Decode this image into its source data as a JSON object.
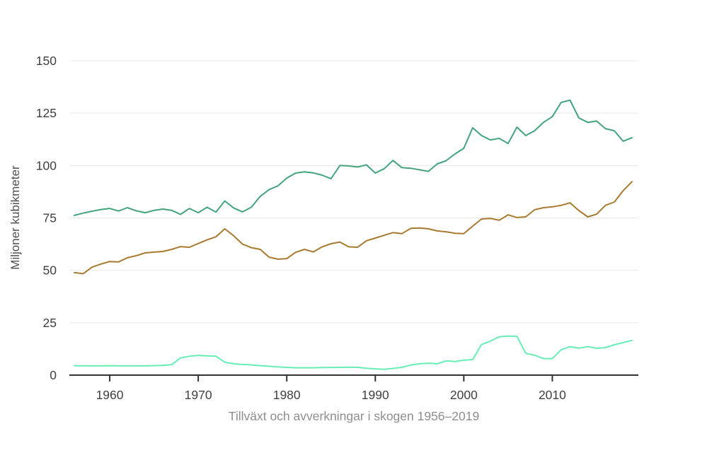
{
  "chart_data": {
    "type": "line",
    "title": "Tillväxt och avverkningar i skogen 1956–2019",
    "ylabel": "Miljoner kubikmeter",
    "xlabel": "",
    "x_range": [
      1956,
      2019
    ],
    "years": [
      1956,
      1957,
      1958,
      1959,
      1960,
      1961,
      1962,
      1963,
      1964,
      1965,
      1966,
      1967,
      1968,
      1969,
      1970,
      1971,
      1972,
      1973,
      1974,
      1975,
      1976,
      1977,
      1978,
      1979,
      1980,
      1981,
      1982,
      1983,
      1984,
      1985,
      1986,
      1987,
      1988,
      1989,
      1990,
      1991,
      1992,
      1993,
      1994,
      1995,
      1996,
      1997,
      1998,
      1999,
      2000,
      2001,
      2002,
      2003,
      2004,
      2005,
      2006,
      2007,
      2008,
      2009,
      2010,
      2011,
      2012,
      2013,
      2014,
      2015,
      2016,
      2017,
      2018,
      2019
    ],
    "x_ticks": [
      1960,
      1970,
      1980,
      1990,
      2000,
      2010
    ],
    "y_ticks": [
      0,
      25,
      50,
      75,
      100,
      125,
      150
    ],
    "ylim": [
      0,
      150
    ],
    "grid": "horizontal",
    "legend": "none",
    "series": [
      {
        "name": "teal-line",
        "color": "#43a47c",
        "values": [
          76.2,
          77.3,
          78.2,
          79,
          79.5,
          78.3,
          79.9,
          78.4,
          77.5,
          78.6,
          79.2,
          78.6,
          76.7,
          79.5,
          77.5,
          80.1,
          77.8,
          83.1,
          79.8,
          77.9,
          80.1,
          85.3,
          88.5,
          90.3,
          94,
          96.4,
          97,
          96.5,
          95.4,
          93.7,
          100,
          99.8,
          99.3,
          100.3,
          96.4,
          98.5,
          102.4,
          99,
          98.7,
          98,
          97.2,
          100.8,
          102.3,
          105.5,
          108.2,
          118,
          114.3,
          112.2,
          113,
          110.5,
          118.3,
          114.3,
          116.6,
          120.6,
          123.3,
          130.1,
          131.2,
          122.7,
          120.6,
          121.2,
          117.6,
          116.6,
          111.6,
          113.3
        ]
      },
      {
        "name": "brown-line",
        "color": "#a9792f",
        "values": [
          48.9,
          48.4,
          51.5,
          53,
          54.2,
          54,
          56,
          57,
          58.3,
          58.7,
          59,
          60,
          61.3,
          61,
          62.8,
          64.5,
          66,
          69.8,
          66.5,
          62.5,
          60.8,
          60,
          56.3,
          55.3,
          55.6,
          58.6,
          60,
          58.8,
          61.2,
          62.7,
          63.5,
          61.2,
          61,
          64.1,
          65.4,
          66.7,
          68,
          67.5,
          70,
          70.2,
          69.8,
          68.8,
          68.4,
          67.7,
          67.5,
          71.1,
          74.5,
          74.8,
          73.9,
          76.5,
          75.2,
          75.5,
          78.9,
          79.9,
          80.3,
          81,
          82.2,
          78.5,
          75.5,
          76.8,
          81,
          82.6,
          88,
          92.3
        ]
      },
      {
        "name": "mint-line",
        "color": "#68eeb4",
        "values": [
          4.5,
          4.4,
          4.4,
          4.4,
          4.5,
          4.4,
          4.4,
          4.4,
          4.4,
          4.5,
          4.7,
          5,
          8.2,
          9,
          9.4,
          9.2,
          9,
          6.2,
          5.4,
          5.1,
          4.9,
          4.5,
          4.2,
          3.9,
          3.7,
          3.5,
          3.5,
          3.5,
          3.6,
          3.6,
          3.7,
          3.8,
          3.7,
          3.3,
          3,
          2.8,
          3.2,
          3.7,
          4.8,
          5.4,
          5.7,
          5.4,
          6.8,
          6.5,
          7.1,
          7.4,
          14.6,
          16.2,
          18.3,
          18.6,
          18.5,
          10.4,
          9.5,
          7.9,
          7.9,
          12.1,
          13.6,
          12.9,
          13.6,
          12.8,
          13.1,
          14.5,
          15.5,
          16.6
        ]
      }
    ]
  },
  "colors": {
    "background": "#ffffff",
    "grid": "#e8e8e8",
    "axis": "#333333",
    "tick_label": "#3f3f3f",
    "axis_title": "#4f4f4f",
    "caption": "#8e8e8e"
  }
}
